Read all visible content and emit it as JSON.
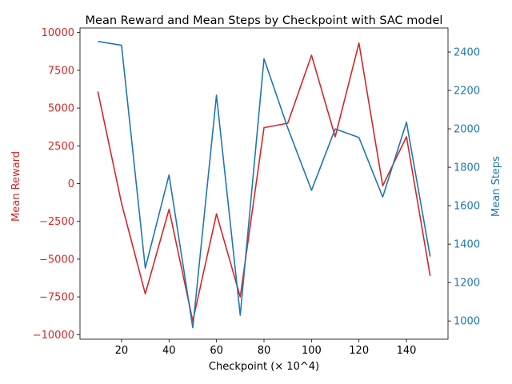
{
  "chart_data": {
    "type": "line",
    "title": "Mean Reward and Mean Steps by Checkpoint with SAC model",
    "xlabel": "Checkpoint (× 10^4)",
    "ylabel_left": "Mean Reward",
    "ylabel_right": "Mean Steps",
    "x": [
      10,
      20,
      30,
      40,
      50,
      60,
      70,
      80,
      90,
      100,
      110,
      120,
      130,
      140,
      150
    ],
    "xlim": [
      2.5,
      157.5
    ],
    "xticks": [
      20,
      40,
      60,
      80,
      100,
      120,
      140
    ],
    "series": [
      {
        "name": "Mean Reward",
        "axis": "left",
        "color": "#d62728",
        "values": [
          6100,
          -1300,
          -7300,
          -1700,
          -9100,
          -2000,
          -7500,
          3700,
          4000,
          8500,
          3100,
          9300,
          -150,
          3100,
          -6100
        ]
      },
      {
        "name": "Mean Steps",
        "axis": "right",
        "color": "#1f77b4",
        "values": [
          2455,
          2435,
          1275,
          1760,
          965,
          2175,
          1030,
          2365,
          2005,
          1680,
          2000,
          1955,
          1645,
          2035,
          1335
        ]
      }
    ],
    "ylim_left": [
      -10300,
      10300
    ],
    "yticks_left": [
      -10000,
      -7500,
      -5000,
      -2500,
      0,
      2500,
      5000,
      7500,
      10000
    ],
    "ylim_right": [
      905,
      2525
    ],
    "yticks_right": [
      1000,
      1200,
      1400,
      1600,
      1800,
      2000,
      2200,
      2400
    ],
    "grid": false,
    "legend": "none"
  }
}
